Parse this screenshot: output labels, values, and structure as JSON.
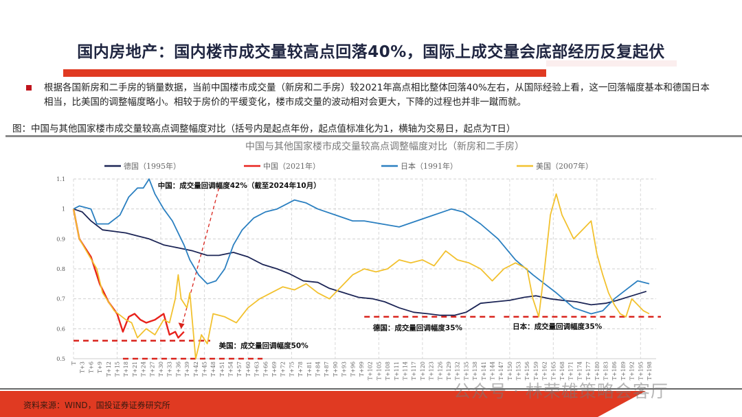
{
  "title": "国内房地产：国内楼市成交量较高点回落40%，国际上成交量会底部经历反复起伏",
  "body_text": "根据各国新房和二手房的销量数据，当前中国楼市成交量（新房和二手房）较2021年高点相比整体回落40%左右，从国际经验上看，这一回落幅度基本和德国日本相当，比美国的调整幅度略小。相较于房价的平缓变化，楼市成交量的波动相对会更大，下降的过程也并非一蹴而就。",
  "caption": "图：中国与其他国家楼市成交量较高点调整幅度对比（括号内是起点年份，起点值标准化为1，横轴为交易日，起点为T日）",
  "source": "资料来源：WIND，国投证券证券研究所",
  "watermark": "公众号 · 林荣雄策略会客厅",
  "colors": {
    "accent_red": "#e03a22",
    "title_navy": "#1f2540"
  },
  "chart_data": {
    "type": "line",
    "title": "中国与其他国家楼市成交量较高点调整幅度对比（新房和二手房）",
    "legend_position": "top",
    "grid": true,
    "ylim": [
      0.5,
      1.1
    ],
    "yticks": [
      "0.5",
      "0.6",
      "0.7",
      "0.8",
      "0.9",
      "1",
      "1.1"
    ],
    "xlim": [
      0,
      198
    ],
    "xtick_step": 3,
    "xtick_prefix": "T",
    "series": [
      {
        "name": "德国（1995年）",
        "color": "#1b2455",
        "x": [
          0,
          3,
          6,
          10,
          14,
          18,
          22,
          26,
          31,
          36,
          41,
          46,
          50,
          55,
          60,
          65,
          70,
          74,
          79,
          84,
          88,
          93,
          98,
          103,
          107,
          112,
          117,
          122,
          126,
          131,
          135,
          140,
          145,
          150,
          155,
          159,
          164,
          168,
          173,
          178,
          183,
          187,
          192,
          197
        ],
        "y": [
          1.0,
          0.99,
          0.96,
          0.93,
          0.925,
          0.92,
          0.91,
          0.9,
          0.88,
          0.87,
          0.86,
          0.845,
          0.845,
          0.855,
          0.84,
          0.815,
          0.8,
          0.785,
          0.76,
          0.755,
          0.735,
          0.72,
          0.705,
          0.7,
          0.69,
          0.67,
          0.655,
          0.65,
          0.645,
          0.645,
          0.655,
          0.685,
          0.69,
          0.695,
          0.705,
          0.71,
          0.7,
          0.695,
          0.69,
          0.68,
          0.685,
          0.695,
          0.71,
          0.725
        ]
      },
      {
        "name": "中国（2021年）",
        "color": "#e8211b",
        "x": [
          0,
          2,
          4,
          6,
          9,
          12,
          15,
          17,
          19,
          21,
          23,
          25,
          28,
          31,
          33,
          35,
          36,
          38
        ],
        "y": [
          1.0,
          0.9,
          0.87,
          0.84,
          0.75,
          0.69,
          0.65,
          0.59,
          0.64,
          0.65,
          0.63,
          0.62,
          0.63,
          0.65,
          0.58,
          0.59,
          0.57,
          0.59
        ]
      },
      {
        "name": "日本（1991年）",
        "color": "#2a7fc0",
        "x": [
          0,
          2,
          6,
          8,
          12,
          16,
          19,
          22,
          24,
          26,
          28,
          31,
          34,
          38,
          40,
          43,
          46,
          49,
          52,
          55,
          58,
          62,
          66,
          70,
          74,
          76,
          80,
          84,
          90,
          96,
          100,
          106,
          112,
          118,
          124,
          130,
          134,
          140,
          146,
          152,
          158,
          162,
          166,
          172,
          178,
          182,
          186,
          190,
          194,
          198
        ],
        "y": [
          1.0,
          1.01,
          1.0,
          0.95,
          0.95,
          0.98,
          1.04,
          1.07,
          1.07,
          1.1,
          1.05,
          1.0,
          0.96,
          0.88,
          0.83,
          0.78,
          0.75,
          0.76,
          0.8,
          0.88,
          0.93,
          0.97,
          0.99,
          1.0,
          1.02,
          1.03,
          1.02,
          1.0,
          0.98,
          0.96,
          0.96,
          0.95,
          0.94,
          0.96,
          0.98,
          1.0,
          0.99,
          0.95,
          0.9,
          0.83,
          0.78,
          0.75,
          0.72,
          0.67,
          0.65,
          0.66,
          0.7,
          0.73,
          0.76,
          0.75
        ]
      },
      {
        "name": "美国（2007年）",
        "color": "#f2c12e",
        "x": [
          0,
          2,
          5,
          8,
          10,
          14,
          18,
          20,
          22,
          25,
          28,
          31,
          33,
          35,
          36,
          37,
          39,
          40,
          42,
          44,
          46,
          48,
          52,
          56,
          60,
          64,
          68,
          72,
          76,
          80,
          84,
          88,
          92,
          96,
          100,
          104,
          108,
          112,
          116,
          120,
          124,
          128,
          132,
          136,
          140,
          144,
          148,
          152,
          156,
          158,
          160,
          162,
          164,
          166,
          168,
          170,
          172,
          174,
          176,
          178,
          180,
          182,
          184,
          186,
          188,
          190,
          192,
          194,
          196,
          198
        ],
        "y": [
          1.0,
          0.9,
          0.85,
          0.8,
          0.72,
          0.66,
          0.63,
          0.62,
          0.57,
          0.6,
          0.58,
          0.63,
          0.62,
          0.7,
          0.78,
          0.7,
          0.67,
          0.72,
          0.5,
          0.58,
          0.55,
          0.65,
          0.64,
          0.62,
          0.67,
          0.7,
          0.72,
          0.74,
          0.73,
          0.75,
          0.72,
          0.7,
          0.74,
          0.78,
          0.8,
          0.79,
          0.8,
          0.83,
          0.82,
          0.83,
          0.81,
          0.86,
          0.83,
          0.82,
          0.8,
          0.76,
          0.8,
          0.82,
          0.8,
          0.7,
          0.64,
          0.8,
          0.98,
          1.05,
          0.98,
          0.94,
          0.9,
          0.92,
          0.94,
          0.96,
          0.85,
          0.78,
          0.72,
          0.68,
          0.65,
          0.64,
          0.7,
          0.68,
          0.66,
          0.65
        ]
      }
    ],
    "reference_lines": [
      {
        "y": 0.56,
        "x": [
          0,
          47
        ]
      },
      {
        "y": 0.5,
        "x": [
          17,
          65
        ]
      },
      {
        "y": 0.64,
        "x": [
          100,
          146
        ]
      },
      {
        "y": 0.64,
        "x": [
          148,
          202
        ]
      }
    ],
    "arrow": {
      "from": [
        50,
        1.07
      ],
      "to": [
        37,
        0.6
      ]
    },
    "annotations": [
      {
        "text": "中国：成交量回调幅度42%（截至2024年10月）",
        "at": [
          29,
          1.07
        ]
      },
      {
        "text": "美国：成交量回调幅度50%",
        "at": [
          50,
          0.535
        ]
      },
      {
        "text": "德国：成交量回调幅度35%",
        "at": [
          103,
          0.595
        ]
      },
      {
        "text": "日本：成交量回调幅度35%",
        "at": [
          151,
          0.6
        ]
      }
    ]
  }
}
